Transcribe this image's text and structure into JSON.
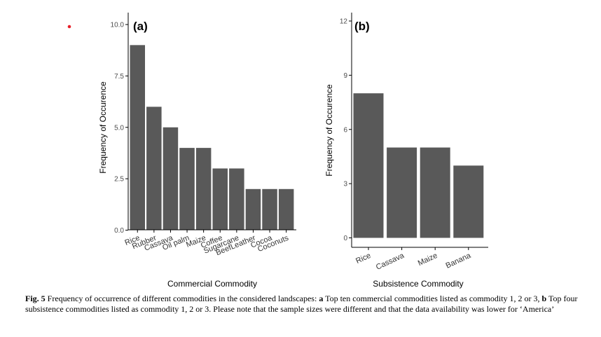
{
  "caption": {
    "fig_label": "Fig. 5",
    "text_1": " Frequency of occurrence of different commodities in the considered landscapes: ",
    "a_label": "a",
    "text_2": " Top ten commercial commodities listed as commodity 1, 2 or 3, ",
    "b_label": "b",
    "text_3": " Top four subsistence commodities listed as commodity 1, 2 or 3. Please note that the sample sizes were different and that the data availability was lower for ‘America’"
  },
  "colors": {
    "bar": "#595959",
    "axis": "#000000",
    "marker": "#e8202a"
  },
  "chart_data": [
    {
      "type": "bar",
      "panel_label": "(a)",
      "title": "",
      "xlabel": "Commercial Commodity",
      "ylabel": "Frequency of Occurence",
      "categories": [
        "Rice",
        "Rubber",
        "Cassava",
        "Oil palm",
        "Maize",
        "Coffee",
        "Sugarcane",
        "BeefLeather",
        "Cocoa",
        "Coconuts"
      ],
      "values": [
        9,
        6,
        5,
        4,
        4,
        3,
        3,
        2,
        2,
        2
      ],
      "yticks": [
        0,
        2.5,
        5,
        7.5,
        10
      ],
      "ytick_labels": [
        "0.0",
        "2.5",
        "5.0",
        "7.5",
        "10.0"
      ],
      "ylim": [
        0,
        10
      ],
      "grid": false,
      "legend": "none"
    },
    {
      "type": "bar",
      "panel_label": "(b)",
      "title": "",
      "xlabel": "Subsistence Commodity",
      "ylabel": "Frequency of Occurence",
      "categories": [
        "Rice",
        "Cassava",
        "Maize",
        "Banana"
      ],
      "values": [
        8,
        5,
        5,
        4
      ],
      "yticks": [
        0,
        3,
        6,
        9,
        12
      ],
      "ytick_labels": [
        "0",
        "3",
        "6",
        "9",
        "12"
      ],
      "ylim": [
        0,
        12
      ],
      "grid": false,
      "legend": "none"
    }
  ]
}
